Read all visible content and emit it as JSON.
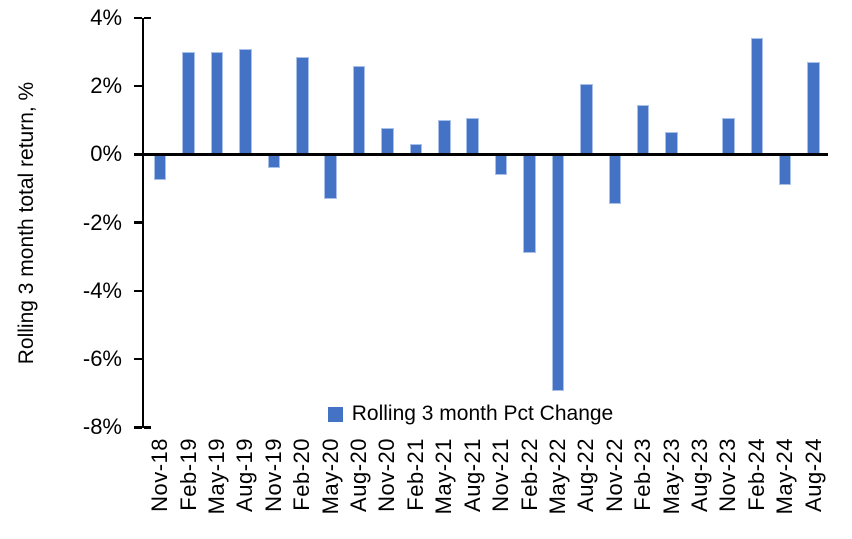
{
  "chart_data": {
    "type": "bar",
    "title": "",
    "xlabel": "",
    "ylabel": "Rolling 3 month total return, %",
    "series_name": "Rolling 3 month Pct Change",
    "categories": [
      "Nov-18",
      "Feb-19",
      "May-19",
      "Aug-19",
      "Nov-19",
      "Feb-20",
      "May-20",
      "Aug-20",
      "Nov-20",
      "Feb-21",
      "May-21",
      "Aug-21",
      "Nov-21",
      "Feb-22",
      "May-22",
      "Aug-22",
      "Nov-22",
      "Feb-23",
      "May-23",
      "Aug-23",
      "Nov-23",
      "Feb-24",
      "May-24",
      "Aug-24"
    ],
    "values": [
      -0.75,
      3.0,
      3.0,
      3.1,
      -0.4,
      2.85,
      -1.3,
      2.6,
      0.77,
      0.3,
      1.0,
      1.07,
      -0.6,
      -2.9,
      -6.95,
      2.07,
      -1.45,
      1.45,
      0.65,
      0.0,
      1.07,
      3.4,
      -0.9,
      2.7
    ],
    "ylim": [
      -8,
      4
    ],
    "yticks": [
      4,
      2,
      0,
      -2,
      -4,
      -6,
      -8
    ],
    "ytick_labels": [
      "4%",
      "2%",
      "0%",
      "-2%",
      "-4%",
      "-6%",
      "-8%"
    ],
    "grid": false,
    "legend_position": "bottom-center",
    "bar_color": "#4472C4",
    "bar_edge_color": "#A9C1E8",
    "axis_color": "#000000"
  },
  "legend": {
    "marker": "square",
    "label": "Rolling 3 month Pct Change",
    "color": "#4472C4"
  }
}
